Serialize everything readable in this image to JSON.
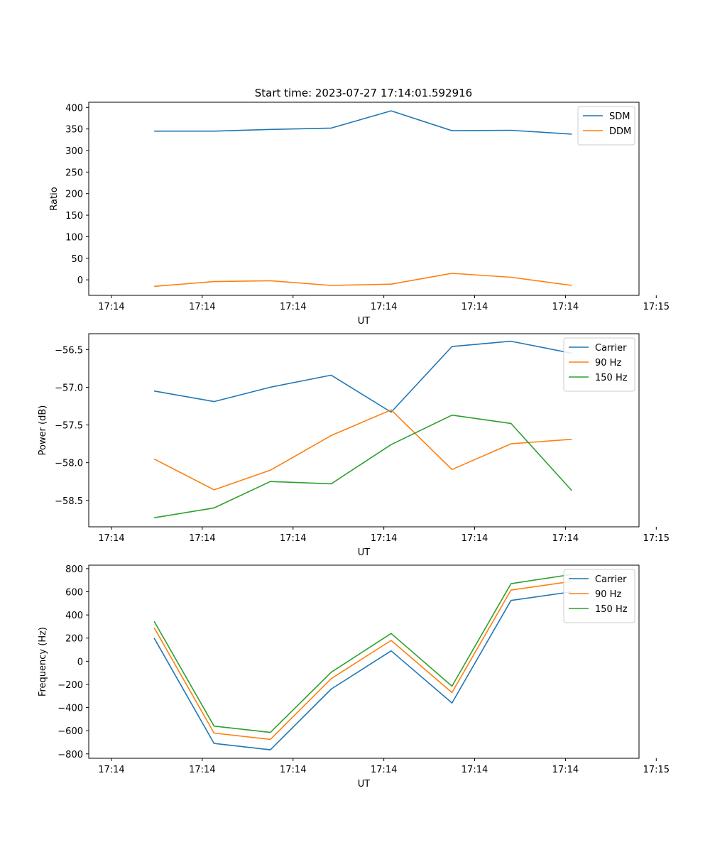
{
  "title": "Start time: 2023-07-27 17:14:01.592916",
  "chart_data": [
    {
      "type": "line",
      "xlabel": "UT",
      "ylabel": "Ratio",
      "x": [
        0.72,
        1.38,
        2.0,
        2.67,
        3.33,
        4.0,
        4.65,
        5.32
      ],
      "xlim": [
        0,
        6.06
      ],
      "x_tick_values": [
        0.25,
        1.25,
        2.25,
        3.25,
        4.25,
        5.25,
        6.25
      ],
      "x_tick_labels": [
        "17:14",
        "17:14",
        "17:14",
        "17:14",
        "17:14",
        "17:14",
        "17:15"
      ],
      "ylim": [
        -36,
        412
      ],
      "y_ticks": [
        0,
        50,
        100,
        150,
        200,
        250,
        300,
        350,
        400
      ],
      "y_tick_labels": [
        "0",
        "50",
        "100",
        "150",
        "200",
        "250",
        "300",
        "350",
        "400"
      ],
      "legend_position": "top-right",
      "series": [
        {
          "name": "SDM",
          "color": "#1f77b4",
          "values": [
            345,
            345,
            349,
            352,
            392,
            346,
            347,
            338
          ]
        },
        {
          "name": "DDM",
          "color": "#ff7f0e",
          "values": [
            -15,
            -4,
            -2,
            -13,
            -10,
            15,
            6,
            -13
          ]
        }
      ]
    },
    {
      "type": "line",
      "xlabel": "UT",
      "ylabel": "Power (dB)",
      "x": [
        0.72,
        1.38,
        2.0,
        2.67,
        3.33,
        4.0,
        4.65,
        5.32
      ],
      "xlim": [
        0,
        6.06
      ],
      "x_tick_values": [
        0.25,
        1.25,
        2.25,
        3.25,
        4.25,
        5.25,
        6.25
      ],
      "x_tick_labels": [
        "17:14",
        "17:14",
        "17:14",
        "17:14",
        "17:14",
        "17:14",
        "17:15"
      ],
      "ylim": [
        -58.85,
        -56.29
      ],
      "y_ticks": [
        -58.5,
        -58.0,
        -57.5,
        -57.0,
        -56.5
      ],
      "y_tick_labels": [
        "−58.5",
        "−58.0",
        "−57.5",
        "−57.0",
        "−56.5"
      ],
      "legend_position": "top-right",
      "series": [
        {
          "name": "Carrier",
          "color": "#1f77b4",
          "values": [
            -57.05,
            -57.19,
            -57.0,
            -56.84,
            -57.33,
            -56.46,
            -56.39,
            -56.55
          ]
        },
        {
          "name": "90 Hz",
          "color": "#ff7f0e",
          "values": [
            -57.95,
            -58.36,
            -58.1,
            -57.64,
            -57.3,
            -58.09,
            -57.75,
            -57.69
          ]
        },
        {
          "name": "150 Hz",
          "color": "#2ca02c",
          "values": [
            -58.73,
            -58.6,
            -58.25,
            -58.28,
            -57.76,
            -57.37,
            -57.48,
            -58.37
          ]
        }
      ]
    },
    {
      "type": "line",
      "xlabel": "UT",
      "ylabel": "Frequency (Hz)",
      "x": [
        0.72,
        1.38,
        2.0,
        2.67,
        3.33,
        4.0,
        4.65,
        5.32
      ],
      "xlim": [
        0,
        6.06
      ],
      "x_tick_values": [
        0.25,
        1.25,
        2.25,
        3.25,
        4.25,
        5.25,
        6.25
      ],
      "x_tick_labels": [
        "17:14",
        "17:14",
        "17:14",
        "17:14",
        "17:14",
        "17:14",
        "17:15"
      ],
      "ylim": [
        -838,
        830
      ],
      "y_ticks": [
        -800,
        -600,
        -400,
        -200,
        0,
        200,
        400,
        600,
        800
      ],
      "y_tick_labels": [
        "−800",
        "−600",
        "−400",
        "−200",
        "0",
        "200",
        "400",
        "600",
        "800"
      ],
      "legend_position": "top-right",
      "series": [
        {
          "name": "Carrier",
          "color": "#1f77b4",
          "values": [
            200,
            -710,
            -765,
            -240,
            90,
            -360,
            525,
            600
          ]
        },
        {
          "name": "90 Hz",
          "color": "#ff7f0e",
          "values": [
            290,
            -620,
            -675,
            -150,
            180,
            -270,
            615,
            690
          ]
        },
        {
          "name": "150 Hz",
          "color": "#2ca02c",
          "values": [
            345,
            -560,
            -615,
            -95,
            240,
            -215,
            670,
            750
          ]
        }
      ]
    }
  ]
}
